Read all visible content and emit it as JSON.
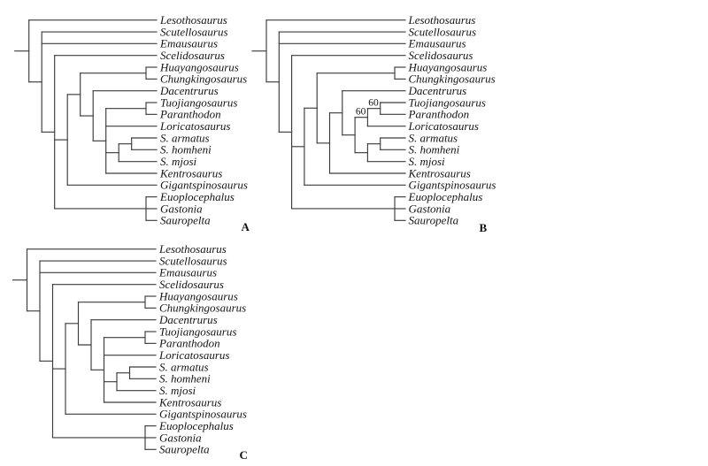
{
  "figure": {
    "background_color": "#ffffff",
    "line_color": "#3c3c3c",
    "text_color": "#151515"
  },
  "trees": [
    {
      "panel_label": "A",
      "tree": {
        "children": [
          {
            "name": "Lesothosaurus"
          },
          {
            "children": [
              {
                "name": "Scutellosaurus"
              },
              {
                "name": "Emausaurus"
              },
              {
                "children": [
                  {
                    "name": "Scelidosaurus"
                  },
                  {
                    "children": [
                      {
                        "children": [
                          {
                            "children": [
                              {
                                "name": "Huayangosaurus"
                              },
                              {
                                "name": "Chungkingosaurus"
                              }
                            ]
                          },
                          {
                            "children": [
                              {
                                "name": "Dacentrurus"
                              },
                              {
                                "children": [
                                  {
                                    "children": [
                                      {
                                        "name": "Tuojiangosaurus"
                                      },
                                      {
                                        "name": "Paranthodon"
                                      }
                                    ]
                                  },
                                  {
                                    "name": "Loricatosaurus"
                                  },
                                  {
                                    "children": [
                                      {
                                        "children": [
                                          {
                                            "name": "S. armatus"
                                          },
                                          {
                                            "name": "S. homheni"
                                          }
                                        ]
                                      },
                                      {
                                        "name": "S. mjosi"
                                      }
                                    ]
                                  },
                                  {
                                    "name": "Kentrosaurus"
                                  }
                                ]
                              }
                            ]
                          }
                        ]
                      },
                      {
                        "name": "Gigantspinosaurus"
                      }
                    ]
                  },
                  {
                    "children": [
                      {
                        "name": "Euoplocephalus"
                      },
                      {
                        "name": "Gastonia"
                      },
                      {
                        "name": "Sauropelta"
                      }
                    ]
                  }
                ]
              }
            ]
          }
        ]
      }
    },
    {
      "panel_label": "B",
      "tree": {
        "children": [
          {
            "name": "Lesothosaurus"
          },
          {
            "children": [
              {
                "name": "Scutellosaurus"
              },
              {
                "name": "Emausaurus"
              },
              {
                "children": [
                  {
                    "name": "Scelidosaurus"
                  },
                  {
                    "children": [
                      {
                        "children": [
                          {
                            "children": [
                              {
                                "name": "Huayangosaurus"
                              },
                              {
                                "name": "Chungkingosaurus"
                              }
                            ]
                          },
                          {
                            "children": [
                              {
                                "children": [
                                  {
                                    "name": "Dacentrurus"
                                  },
                                  {
                                    "children": [
                                      {
                                        "support": "60",
                                        "children": [
                                          {
                                            "support": "60",
                                            "children": [
                                              {
                                                "name": "Tuojiangosaurus"
                                              },
                                              {
                                                "name": "Paranthodon"
                                              }
                                            ]
                                          },
                                          {
                                            "name": "Loricatosaurus"
                                          }
                                        ]
                                      },
                                      {
                                        "children": [
                                          {
                                            "children": [
                                              {
                                                "name": "S. armatus"
                                              },
                                              {
                                                "name": "S. homheni"
                                              }
                                            ]
                                          },
                                          {
                                            "name": "S. mjosi"
                                          }
                                        ]
                                      }
                                    ]
                                  }
                                ]
                              },
                              {
                                "name": "Kentrosaurus"
                              }
                            ]
                          }
                        ]
                      },
                      {
                        "name": "Gigantspinosaurus"
                      }
                    ]
                  },
                  {
                    "children": [
                      {
                        "name": "Euoplocephalus"
                      },
                      {
                        "name": "Gastonia"
                      },
                      {
                        "name": "Sauropelta"
                      }
                    ]
                  }
                ]
              }
            ]
          }
        ]
      }
    },
    {
      "panel_label": "C",
      "tree": {
        "children": [
          {
            "name": "Lesothosaurus"
          },
          {
            "children": [
              {
                "name": "Scutellosaurus"
              },
              {
                "name": "Emausaurus"
              },
              {
                "children": [
                  {
                    "name": "Scelidosaurus"
                  },
                  {
                    "children": [
                      {
                        "children": [
                          {
                            "children": [
                              {
                                "name": "Huayangosaurus"
                              },
                              {
                                "name": "Chungkingosaurus"
                              }
                            ]
                          },
                          {
                            "children": [
                              {
                                "name": "Dacentrurus"
                              },
                              {
                                "children": [
                                  {
                                    "children": [
                                      {
                                        "name": "Tuojiangosaurus"
                                      },
                                      {
                                        "name": "Paranthodon"
                                      }
                                    ]
                                  },
                                  {
                                    "name": "Loricatosaurus"
                                  },
                                  {
                                    "children": [
                                      {
                                        "children": [
                                          {
                                            "name": "S. armatus"
                                          },
                                          {
                                            "name": "S. homheni"
                                          }
                                        ]
                                      },
                                      {
                                        "name": "S. mjosi"
                                      }
                                    ]
                                  },
                                  {
                                    "name": "Kentrosaurus"
                                  }
                                ]
                              }
                            ]
                          }
                        ]
                      },
                      {
                        "name": "Gigantspinosaurus"
                      }
                    ]
                  },
                  {
                    "children": [
                      {
                        "name": "Euoplocephalus"
                      },
                      {
                        "name": "Gastonia"
                      },
                      {
                        "name": "Sauropelta"
                      }
                    ]
                  }
                ]
              }
            ]
          }
        ]
      }
    }
  ]
}
